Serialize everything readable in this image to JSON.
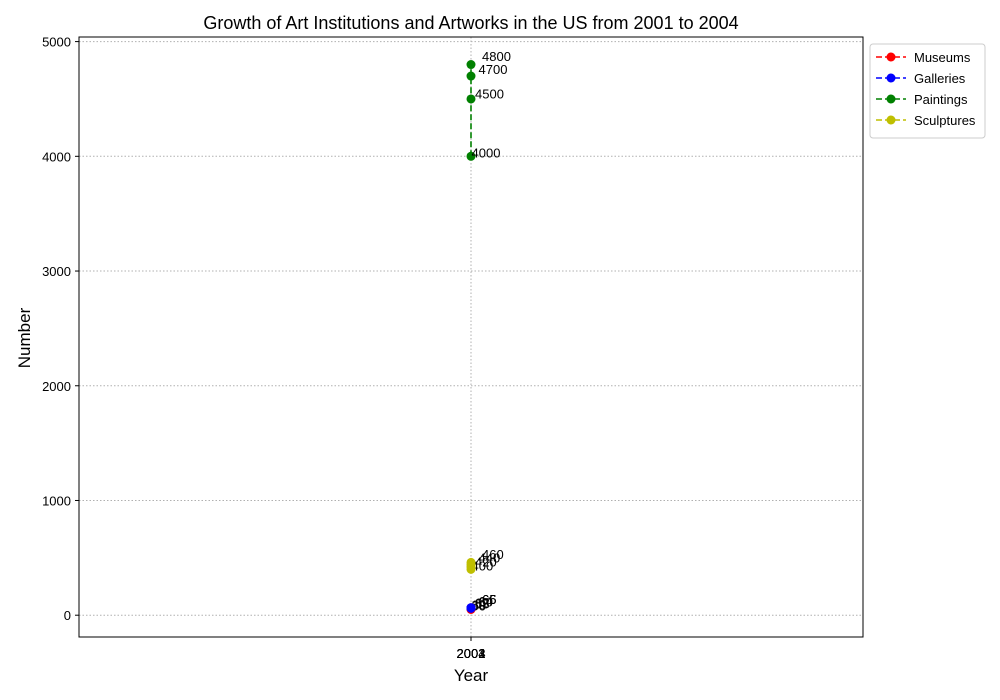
{
  "chart_data": {
    "type": "line",
    "title": "Growth of Art Institutions and Artworks in the US from 2001 to 2004",
    "xlabel": "Year",
    "ylabel": "Number",
    "x_ticks": [
      "2001",
      "2002",
      "2003",
      "2004"
    ],
    "xlim": [
      2000.0,
      2002.0
    ],
    "ylim": [
      -190,
      5040
    ],
    "y_ticks": [
      0,
      1000,
      2000,
      3000,
      4000,
      5000
    ],
    "grid": true,
    "legend": {
      "position": "upper-right-outside"
    },
    "series": [
      {
        "name": "Museums",
        "color": "#ff0000",
        "x": [
          2001,
          2001,
          2001,
          2001
        ],
        "values": [
          50,
          55,
          60,
          65
        ]
      },
      {
        "name": "Galleries",
        "color": "#0000ff",
        "x": [
          2001,
          2001,
          2001,
          2001
        ],
        "values": [
          60,
          62,
          64,
          66
        ]
      },
      {
        "name": "Paintings",
        "color": "#008000",
        "x": [
          2001,
          2001,
          2001,
          2001
        ],
        "values": [
          4000,
          4500,
          4700,
          4800
        ]
      },
      {
        "name": "Sculptures",
        "color": "#bfbf00",
        "x": [
          2001,
          2001,
          2001,
          2001
        ],
        "values": [
          400,
          420,
          440,
          460
        ]
      }
    ]
  }
}
